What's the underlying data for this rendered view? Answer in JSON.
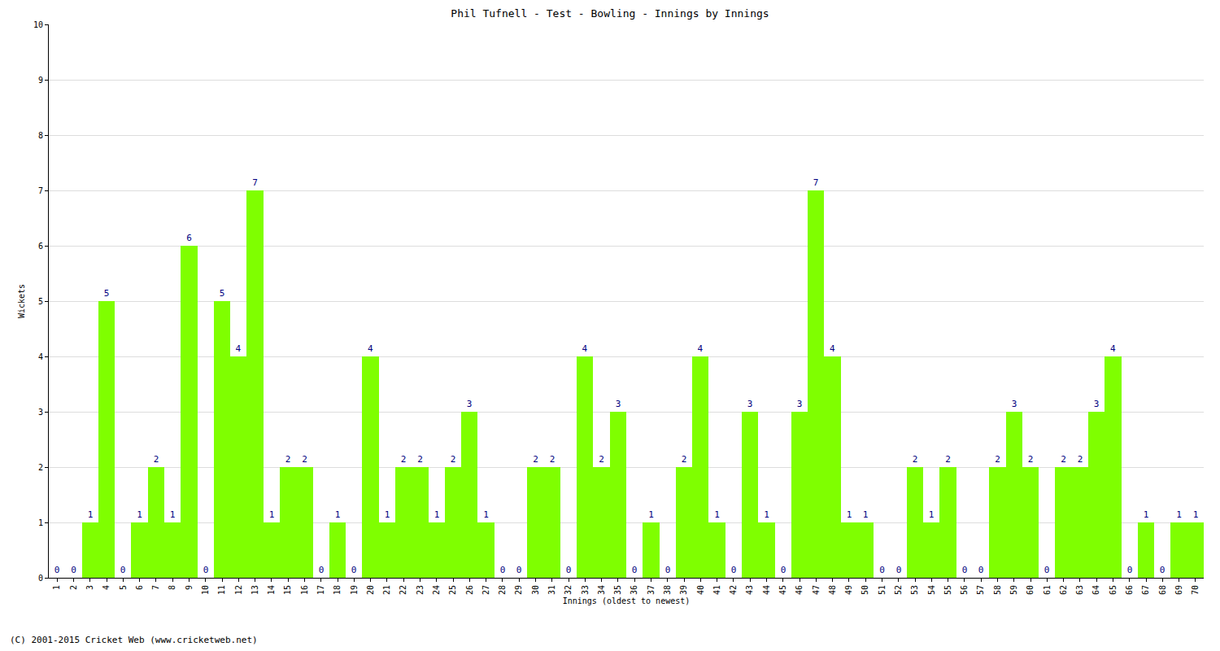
{
  "chart_data": {
    "type": "bar",
    "title": "Phil Tufnell - Test - Bowling - Innings by Innings",
    "x_label": "Innings (oldest to newest)",
    "y_label": "Wickets",
    "annotations": [
      "(C) 2001-2015 Cricket Web (www.cricketweb.net)"
    ],
    "categories": [
      "1",
      "2",
      "3",
      "4",
      "5",
      "6",
      "7",
      "8",
      "9",
      "10",
      "11",
      "12",
      "13",
      "14",
      "15",
      "16",
      "17",
      "18",
      "19",
      "20",
      "21",
      "22",
      "23",
      "24",
      "25",
      "26",
      "27",
      "28",
      "29",
      "30",
      "31",
      "32",
      "33",
      "34",
      "35",
      "36",
      "37",
      "38",
      "39",
      "40",
      "41",
      "42",
      "43",
      "44",
      "45",
      "46",
      "47",
      "48",
      "49",
      "50",
      "51",
      "52",
      "53",
      "54",
      "55",
      "56",
      "57",
      "58",
      "59",
      "60",
      "61",
      "62",
      "63",
      "64",
      "65",
      "66",
      "67",
      "68",
      "69",
      "70"
    ],
    "values": [
      0,
      0,
      1,
      5,
      0,
      1,
      2,
      1,
      6,
      0,
      5,
      4,
      7,
      1,
      2,
      2,
      0,
      1,
      0,
      4,
      1,
      2,
      2,
      1,
      2,
      3,
      1,
      0,
      0,
      2,
      2,
      0,
      4,
      2,
      3,
      0,
      1,
      0,
      2,
      4,
      1,
      0,
      3,
      1,
      0,
      3,
      7,
      4,
      1,
      1,
      0,
      0,
      2,
      1,
      2,
      0,
      0,
      2,
      3,
      2,
      0,
      2,
      2,
      3,
      4,
      0,
      1,
      0,
      1,
      1
    ],
    "color": "#7fff00",
    "ylim": [
      0,
      10
    ],
    "yticks": [
      0,
      1,
      2,
      3,
      4,
      5,
      6,
      7,
      8,
      9,
      10
    ],
    "grid": true,
    "data_labels": true
  }
}
